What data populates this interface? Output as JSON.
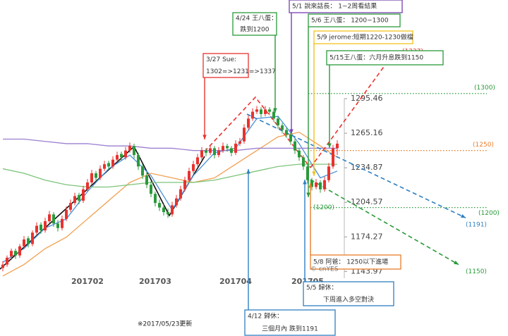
{
  "chart_data": {
    "type": "candlestick",
    "up_color": "#e8322e",
    "down_color": "#2a9a3a",
    "ylim": [
      1138,
      1295.5
    ],
    "yticks": [
      1143.97,
      1174.27,
      1204.57,
      1234.87,
      1265.16,
      1295.46
    ],
    "categories": [
      null,
      null,
      null,
      null,
      null,
      null,
      null,
      null,
      null,
      null,
      null,
      null,
      null,
      null,
      null,
      null,
      null,
      null,
      null,
      null,
      "201702",
      null,
      null,
      null,
      null,
      null,
      null,
      null,
      null,
      null,
      null,
      null,
      null,
      null,
      null,
      null,
      "201703",
      null,
      null,
      null,
      null,
      null,
      null,
      null,
      null,
      null,
      null,
      null,
      null,
      null,
      null,
      null,
      null,
      null,
      null,
      "201704",
      null,
      null,
      null,
      null,
      null,
      null,
      null,
      null,
      null,
      null,
      null,
      null,
      null,
      null,
      null,
      null,
      "201705",
      null,
      null,
      null,
      null,
      null,
      null,
      null
    ],
    "ohlc": [
      [
        1147,
        1153,
        1144,
        1150
      ],
      [
        1150,
        1158,
        1148,
        1156
      ],
      [
        1157,
        1164,
        1154,
        1162
      ],
      [
        1162,
        1164,
        1155,
        1158
      ],
      [
        1158,
        1168,
        1156,
        1166
      ],
      [
        1166,
        1175,
        1164,
        1172
      ],
      [
        1173,
        1175,
        1165,
        1168
      ],
      [
        1168,
        1180,
        1166,
        1178
      ],
      [
        1178,
        1187,
        1176,
        1184
      ],
      [
        1185,
        1187,
        1177,
        1180
      ],
      [
        1180,
        1191,
        1178,
        1188
      ],
      [
        1188,
        1197,
        1186,
        1194
      ],
      [
        1194,
        1196,
        1183,
        1186
      ],
      [
        1186,
        1189,
        1179,
        1182
      ],
      [
        1182,
        1193,
        1180,
        1190
      ],
      [
        1190,
        1201,
        1188,
        1198
      ],
      [
        1198,
        1207,
        1196,
        1204
      ],
      [
        1204,
        1213,
        1202,
        1210
      ],
      [
        1211,
        1213,
        1203,
        1206
      ],
      [
        1206,
        1219,
        1204,
        1216
      ],
      [
        1216,
        1225,
        1214,
        1222
      ],
      [
        1222,
        1233,
        1220,
        1230
      ],
      [
        1230,
        1232,
        1223,
        1226
      ],
      [
        1226,
        1237,
        1224,
        1234
      ],
      [
        1234,
        1241,
        1232,
        1238
      ],
      [
        1239,
        1241,
        1233,
        1236
      ],
      [
        1236,
        1245,
        1234,
        1242
      ],
      [
        1242,
        1249,
        1240,
        1246
      ],
      [
        1247,
        1249,
        1241,
        1244
      ],
      [
        1244,
        1253,
        1242,
        1250
      ],
      [
        1250,
        1257,
        1248,
        1254
      ],
      [
        1254,
        1256,
        1243,
        1246
      ],
      [
        1246,
        1248,
        1233,
        1236
      ],
      [
        1236,
        1238,
        1225,
        1228
      ],
      [
        1228,
        1231,
        1217,
        1220
      ],
      [
        1220,
        1223,
        1209,
        1212
      ],
      [
        1212,
        1214,
        1201,
        1204
      ],
      [
        1204,
        1207,
        1197,
        1200
      ],
      [
        1200,
        1203,
        1193,
        1196
      ],
      [
        1196,
        1199,
        1191,
        1194
      ],
      [
        1194,
        1205,
        1192,
        1202
      ],
      [
        1202,
        1211,
        1200,
        1208
      ],
      [
        1208,
        1219,
        1206,
        1216
      ],
      [
        1216,
        1227,
        1214,
        1224
      ],
      [
        1224,
        1235,
        1222,
        1232
      ],
      [
        1232,
        1241,
        1230,
        1238
      ],
      [
        1238,
        1247,
        1236,
        1244
      ],
      [
        1244,
        1253,
        1242,
        1250
      ],
      [
        1250,
        1252,
        1245,
        1248
      ],
      [
        1248,
        1255,
        1246,
        1252
      ],
      [
        1252,
        1254,
        1243,
        1246
      ],
      [
        1246,
        1253,
        1244,
        1250
      ],
      [
        1250,
        1257,
        1248,
        1254
      ],
      [
        1254,
        1256,
        1249,
        1252
      ],
      [
        1252,
        1254,
        1245,
        1248
      ],
      [
        1248,
        1259,
        1246,
        1256
      ],
      [
        1256,
        1261,
        1254,
        1258
      ],
      [
        1258,
        1273,
        1256,
        1270
      ],
      [
        1270,
        1281,
        1268,
        1278
      ],
      [
        1278,
        1287,
        1276,
        1284
      ],
      [
        1284,
        1289,
        1282,
        1286
      ],
      [
        1286,
        1288,
        1279,
        1282
      ],
      [
        1282,
        1289,
        1280,
        1286
      ],
      [
        1286,
        1288,
        1281,
        1284
      ],
      [
        1284,
        1286,
        1275,
        1278
      ],
      [
        1278,
        1280,
        1269,
        1272
      ],
      [
        1272,
        1274,
        1265,
        1268
      ],
      [
        1268,
        1270,
        1261,
        1264
      ],
      [
        1264,
        1266,
        1255,
        1258
      ],
      [
        1258,
        1260,
        1247,
        1250
      ],
      [
        1250,
        1252,
        1241,
        1244
      ],
      [
        1244,
        1246,
        1233,
        1236
      ],
      [
        1236,
        1238,
        1221,
        1224
      ],
      [
        1224,
        1226,
        1215,
        1218
      ],
      [
        1218,
        1225,
        1216,
        1222
      ],
      [
        1222,
        1224,
        1213,
        1216
      ],
      [
        1216,
        1227,
        1214,
        1224
      ],
      [
        1224,
        1239,
        1222,
        1236
      ],
      [
        1236,
        1255,
        1234,
        1252
      ],
      [
        1252,
        1259,
        1246,
        1256
      ]
    ],
    "ma": [
      {
        "color": "#4a90d9",
        "x": [
          0,
          5,
          10,
          15,
          20,
          25,
          30,
          35,
          40,
          45,
          50,
          55,
          60,
          65,
          70,
          75,
          79
        ],
        "values": [
          1152,
          1164,
          1182,
          1190,
          1214,
          1234,
          1246,
          1228,
          1198,
          1228,
          1248,
          1252,
          1278,
          1280,
          1256,
          1226,
          1232
        ]
      },
      {
        "color": "#f0a050",
        "x": [
          0,
          5,
          10,
          15,
          20,
          25,
          30,
          35,
          40,
          45,
          50,
          55,
          60,
          65,
          70,
          75,
          79
        ],
        "values": [
          1140,
          1150,
          1164,
          1174,
          1190,
          1206,
          1222,
          1230,
          1226,
          1222,
          1226,
          1238,
          1250,
          1262,
          1266,
          1254,
          1244
        ]
      },
      {
        "color": "#7cc47a",
        "x": [
          0,
          5,
          10,
          15,
          20,
          25,
          30,
          35,
          40,
          45,
          50,
          55,
          60,
          65,
          70,
          75,
          79
        ],
        "values": [
          1234,
          1230,
          1224,
          1220,
          1218,
          1218,
          1220,
          1222,
          1222,
          1222,
          1224,
          1228,
          1232,
          1236,
          1238,
          1238,
          1238
        ]
      },
      {
        "color": "#9b7fd0",
        "x": [
          0,
          5,
          10,
          15,
          20,
          25,
          30,
          35,
          40,
          45,
          50,
          55,
          60,
          65,
          70,
          75,
          79
        ],
        "values": [
          1260,
          1260,
          1258,
          1256,
          1256,
          1254,
          1254,
          1252,
          1252,
          1250,
          1250,
          1250,
          1252,
          1252,
          1252,
          1252,
          1252
        ]
      }
    ],
    "levels": [
      {
        "value": 1300,
        "label": "(1300)",
        "color": "#2a9a3a"
      },
      {
        "value": 1250,
        "label": "(1250)",
        "color": "#e87d2a"
      },
      {
        "value": 1200,
        "label": "(1200)",
        "color": "#2a9a3a"
      }
    ],
    "targets": [
      {
        "value": 1337,
        "label": "(1337)",
        "color": "#e8322e"
      },
      {
        "value": 1191,
        "label": "(1191)",
        "color": "#2f7fc1"
      },
      {
        "value": 1150,
        "label": "(1150)",
        "color": "#2a9a3a"
      }
    ],
    "annotations": [
      {
        "lines": [
          "3/27 Sue:",
          "1302=>1231=>1337"
        ],
        "color": "#e8322e"
      },
      {
        "lines": [
          "4/24 王八蛋：",
          "跌到1200"
        ],
        "color": "#2a9a3a"
      },
      {
        "lines": [
          "5/1 說來話長：  1~2周看結果"
        ],
        "color": "#7a3fb0"
      },
      {
        "lines": [
          "5/6 王八蛋：     1200~1300"
        ],
        "color": "#2a9a3a"
      },
      {
        "lines": [
          "5/9 jerome:短期1220-1230做檔"
        ],
        "color": "#f2c21b"
      },
      {
        "lines": [
          "5/15王八蛋：六月升息跌到1150"
        ],
        "color": "#2a9a3a"
      },
      {
        "lines": [
          "5/8 阿爸：      1250以下進場"
        ],
        "color": "#e87d2a"
      },
      {
        "lines": [
          "5/5 歸休：",
          "下周進入多空對決"
        ],
        "color": "#2f7fc1"
      },
      {
        "lines": [
          "4/12 歸休：",
          "三個月內  跌到1191"
        ],
        "color": "#2f7fc1"
      }
    ],
    "footnote": "※2017/05/23更新",
    "watermark": "© cnYES"
  }
}
